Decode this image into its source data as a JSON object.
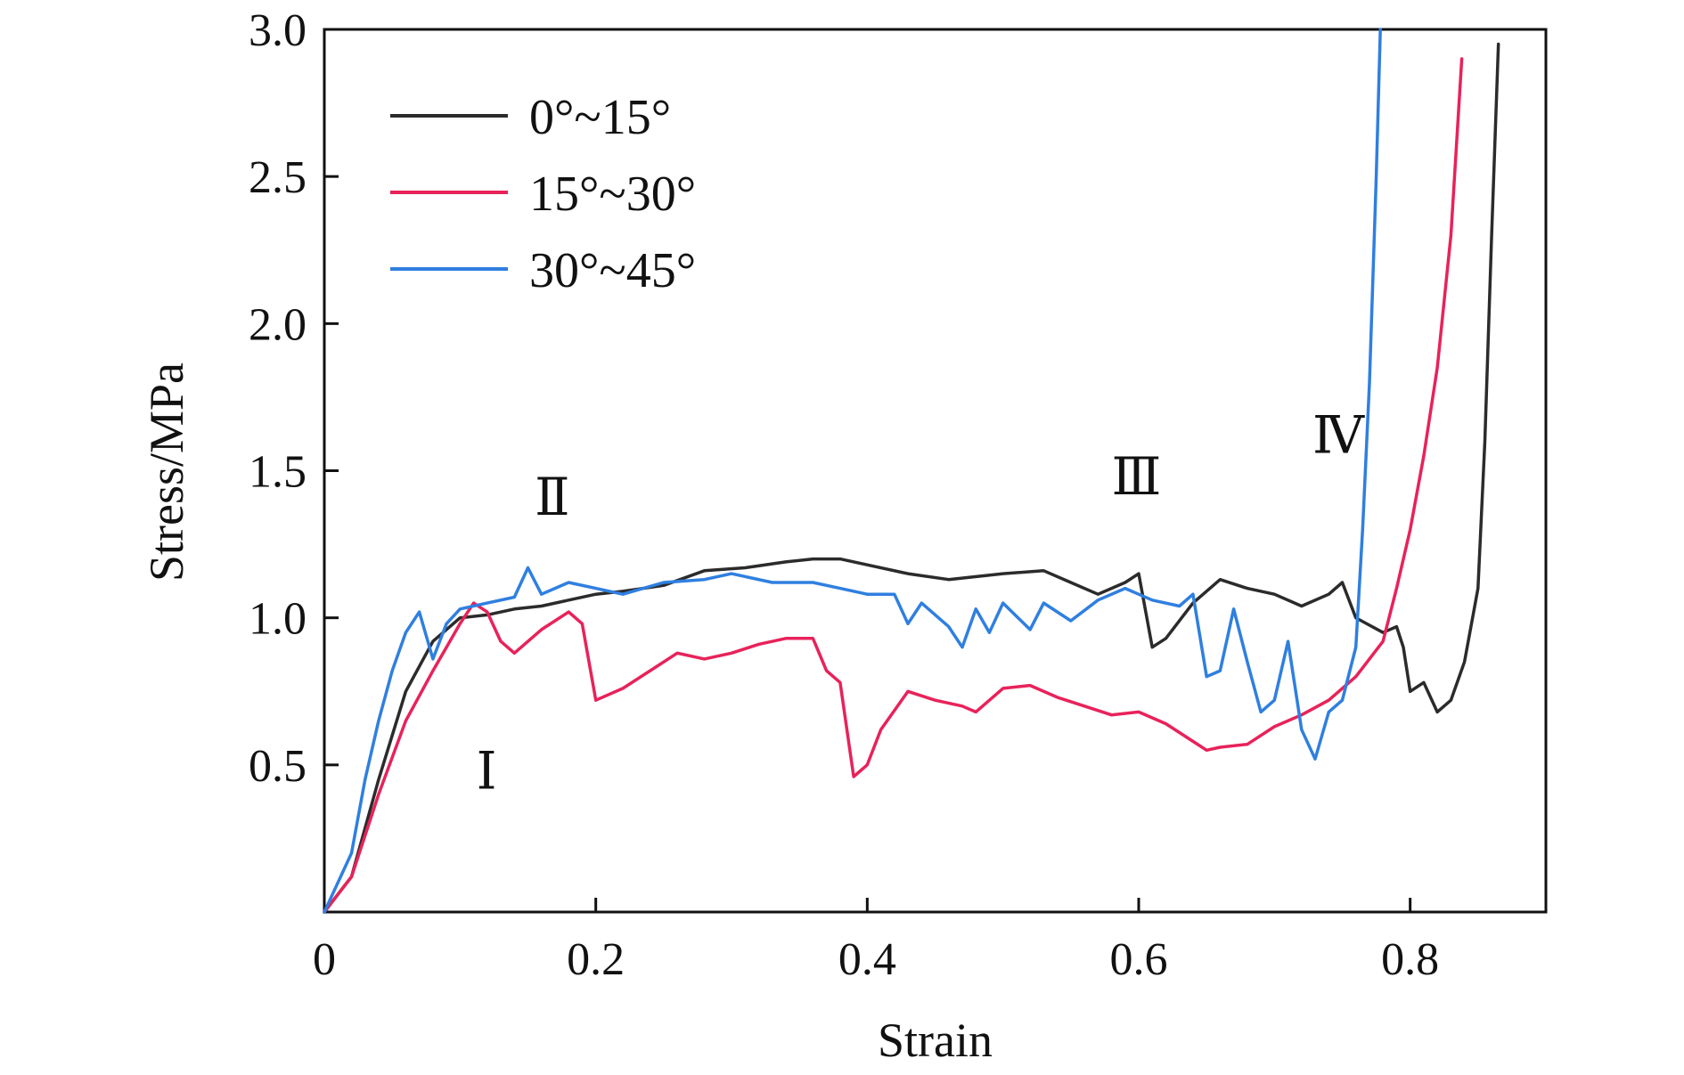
{
  "chart_data": {
    "type": "line",
    "title": "",
    "xlabel": "Strain",
    "ylabel": "Stress/MPa",
    "xlim": [
      0,
      0.9
    ],
    "ylim": [
      0,
      3.0
    ],
    "xticks": [
      0,
      0.2,
      0.4,
      0.6,
      0.8
    ],
    "xtick_labels": [
      "0",
      "0.2",
      "0.4",
      "0.6",
      "0.8"
    ],
    "yticks": [
      0.5,
      1.0,
      1.5,
      2.0,
      2.5,
      3.0
    ],
    "ytick_labels": [
      "0.5",
      "1.0",
      "1.5",
      "2.0",
      "2.5",
      "3.0"
    ],
    "grid": false,
    "legend_position": "top-left",
    "series": [
      {
        "name": "0°~15°",
        "color": "#2b2b2b",
        "points": [
          [
            0.0,
            0.0
          ],
          [
            0.02,
            0.12
          ],
          [
            0.04,
            0.45
          ],
          [
            0.06,
            0.75
          ],
          [
            0.08,
            0.92
          ],
          [
            0.1,
            1.0
          ],
          [
            0.12,
            1.01
          ],
          [
            0.14,
            1.03
          ],
          [
            0.16,
            1.04
          ],
          [
            0.18,
            1.06
          ],
          [
            0.2,
            1.08
          ],
          [
            0.22,
            1.09
          ],
          [
            0.25,
            1.11
          ],
          [
            0.28,
            1.16
          ],
          [
            0.31,
            1.17
          ],
          [
            0.34,
            1.19
          ],
          [
            0.36,
            1.2
          ],
          [
            0.38,
            1.2
          ],
          [
            0.4,
            1.18
          ],
          [
            0.43,
            1.15
          ],
          [
            0.46,
            1.13
          ],
          [
            0.5,
            1.15
          ],
          [
            0.53,
            1.16
          ],
          [
            0.55,
            1.12
          ],
          [
            0.57,
            1.08
          ],
          [
            0.59,
            1.12
          ],
          [
            0.6,
            1.15
          ],
          [
            0.61,
            0.9
          ],
          [
            0.62,
            0.93
          ],
          [
            0.64,
            1.05
          ],
          [
            0.66,
            1.13
          ],
          [
            0.68,
            1.1
          ],
          [
            0.7,
            1.08
          ],
          [
            0.72,
            1.04
          ],
          [
            0.74,
            1.08
          ],
          [
            0.75,
            1.12
          ],
          [
            0.76,
            1.0
          ],
          [
            0.78,
            0.95
          ],
          [
            0.79,
            0.97
          ],
          [
            0.795,
            0.9
          ],
          [
            0.8,
            0.75
          ],
          [
            0.81,
            0.78
          ],
          [
            0.82,
            0.68
          ],
          [
            0.83,
            0.72
          ],
          [
            0.84,
            0.85
          ],
          [
            0.85,
            1.1
          ],
          [
            0.855,
            1.6
          ],
          [
            0.86,
            2.3
          ],
          [
            0.865,
            2.95
          ]
        ]
      },
      {
        "name": "15°~30°",
        "color": "#e8225a",
        "points": [
          [
            0.0,
            0.0
          ],
          [
            0.02,
            0.12
          ],
          [
            0.04,
            0.4
          ],
          [
            0.06,
            0.65
          ],
          [
            0.08,
            0.82
          ],
          [
            0.1,
            0.98
          ],
          [
            0.11,
            1.05
          ],
          [
            0.12,
            1.02
          ],
          [
            0.13,
            0.92
          ],
          [
            0.14,
            0.88
          ],
          [
            0.16,
            0.96
          ],
          [
            0.18,
            1.02
          ],
          [
            0.19,
            0.98
          ],
          [
            0.2,
            0.72
          ],
          [
            0.22,
            0.76
          ],
          [
            0.24,
            0.82
          ],
          [
            0.26,
            0.88
          ],
          [
            0.28,
            0.86
          ],
          [
            0.3,
            0.88
          ],
          [
            0.32,
            0.91
          ],
          [
            0.34,
            0.93
          ],
          [
            0.36,
            0.93
          ],
          [
            0.37,
            0.82
          ],
          [
            0.38,
            0.78
          ],
          [
            0.39,
            0.46
          ],
          [
            0.4,
            0.5
          ],
          [
            0.41,
            0.62
          ],
          [
            0.43,
            0.75
          ],
          [
            0.45,
            0.72
          ],
          [
            0.47,
            0.7
          ],
          [
            0.48,
            0.68
          ],
          [
            0.5,
            0.76
          ],
          [
            0.52,
            0.77
          ],
          [
            0.54,
            0.73
          ],
          [
            0.56,
            0.7
          ],
          [
            0.58,
            0.67
          ],
          [
            0.6,
            0.68
          ],
          [
            0.62,
            0.64
          ],
          [
            0.64,
            0.58
          ],
          [
            0.65,
            0.55
          ],
          [
            0.66,
            0.56
          ],
          [
            0.68,
            0.57
          ],
          [
            0.7,
            0.63
          ],
          [
            0.72,
            0.67
          ],
          [
            0.74,
            0.72
          ],
          [
            0.76,
            0.8
          ],
          [
            0.78,
            0.92
          ],
          [
            0.79,
            1.1
          ],
          [
            0.8,
            1.3
          ],
          [
            0.81,
            1.55
          ],
          [
            0.82,
            1.85
          ],
          [
            0.83,
            2.3
          ],
          [
            0.838,
            2.9
          ]
        ]
      },
      {
        "name": "30°~45°",
        "color": "#2f7fe0",
        "points": [
          [
            0.0,
            0.0
          ],
          [
            0.02,
            0.2
          ],
          [
            0.03,
            0.45
          ],
          [
            0.04,
            0.65
          ],
          [
            0.05,
            0.82
          ],
          [
            0.06,
            0.95
          ],
          [
            0.07,
            1.02
          ],
          [
            0.08,
            0.86
          ],
          [
            0.09,
            0.98
          ],
          [
            0.1,
            1.03
          ],
          [
            0.12,
            1.05
          ],
          [
            0.14,
            1.07
          ],
          [
            0.15,
            1.17
          ],
          [
            0.16,
            1.08
          ],
          [
            0.18,
            1.12
          ],
          [
            0.2,
            1.1
          ],
          [
            0.22,
            1.08
          ],
          [
            0.25,
            1.12
          ],
          [
            0.28,
            1.13
          ],
          [
            0.3,
            1.15
          ],
          [
            0.33,
            1.12
          ],
          [
            0.36,
            1.12
          ],
          [
            0.38,
            1.1
          ],
          [
            0.4,
            1.08
          ],
          [
            0.42,
            1.08
          ],
          [
            0.43,
            0.98
          ],
          [
            0.44,
            1.05
          ],
          [
            0.46,
            0.97
          ],
          [
            0.47,
            0.9
          ],
          [
            0.48,
            1.03
          ],
          [
            0.49,
            0.95
          ],
          [
            0.5,
            1.05
          ],
          [
            0.52,
            0.96
          ],
          [
            0.53,
            1.05
          ],
          [
            0.55,
            0.99
          ],
          [
            0.57,
            1.06
          ],
          [
            0.59,
            1.1
          ],
          [
            0.61,
            1.06
          ],
          [
            0.63,
            1.04
          ],
          [
            0.64,
            1.08
          ],
          [
            0.65,
            0.8
          ],
          [
            0.66,
            0.82
          ],
          [
            0.67,
            1.03
          ],
          [
            0.68,
            0.85
          ],
          [
            0.69,
            0.68
          ],
          [
            0.7,
            0.72
          ],
          [
            0.71,
            0.92
          ],
          [
            0.72,
            0.62
          ],
          [
            0.73,
            0.52
          ],
          [
            0.74,
            0.68
          ],
          [
            0.75,
            0.72
          ],
          [
            0.76,
            0.9
          ],
          [
            0.765,
            1.3
          ],
          [
            0.77,
            1.8
          ],
          [
            0.775,
            2.5
          ],
          [
            0.778,
            3.0
          ]
        ]
      }
    ],
    "annotations": [
      {
        "text": "Ⅰ",
        "x": 0.112,
        "y": 0.42
      },
      {
        "text": "Ⅱ",
        "x": 0.155,
        "y": 1.35
      },
      {
        "text": "Ⅲ",
        "x": 0.58,
        "y": 1.42
      },
      {
        "text": "Ⅳ",
        "x": 0.728,
        "y": 1.56
      }
    ]
  }
}
